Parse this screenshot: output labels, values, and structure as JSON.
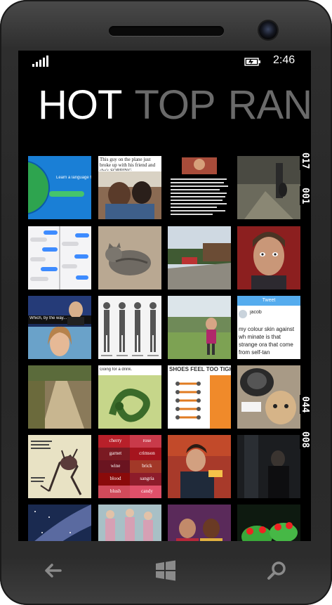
{
  "status_bar": {
    "time": "2:46",
    "signal_icon": "signal-bars-icon",
    "battery_icon": "battery-charging-icon"
  },
  "pivot": {
    "items": [
      {
        "label": "HOT",
        "active": true
      },
      {
        "label": "TOP",
        "active": false
      },
      {
        "label": "RAND",
        "active": false
      }
    ]
  },
  "side_labels": [
    "017",
    "001",
    "044",
    "008"
  ],
  "tiles": [
    {
      "name": "tile-language-app",
      "caption": "Learn a language fo"
    },
    {
      "name": "tile-plane-sobbing",
      "caption": "This guy on the plane just broke up with his friend and she's SOBBING"
    },
    {
      "name": "tile-text-post",
      "caption": ""
    },
    {
      "name": "tile-security-cam",
      "caption": ""
    },
    {
      "name": "tile-chat-screenshot",
      "caption": ""
    },
    {
      "name": "tile-cat",
      "caption": ""
    },
    {
      "name": "tile-driveway",
      "caption": ""
    },
    {
      "name": "tile-shocked-man",
      "caption": ""
    },
    {
      "name": "tile-news-anchor",
      "caption": ""
    },
    {
      "name": "tile-poses-chart",
      "caption": ""
    },
    {
      "name": "tile-backyard-girl",
      "caption": ""
    },
    {
      "name": "tile-tweet",
      "caption": "Tweet"
    },
    {
      "name": "tile-dirt-road",
      "caption": ""
    },
    {
      "name": "tile-snake",
      "caption": ""
    },
    {
      "name": "tile-shoelaces",
      "caption": "SHOES FEEL TOO TIGHT"
    },
    {
      "name": "tile-robot-vacuum-dog",
      "caption": ""
    },
    {
      "name": "tile-cartoon-monster",
      "caption": ""
    },
    {
      "name": "tile-color-names",
      "caption": ""
    },
    {
      "name": "tile-fan-man",
      "caption": ""
    },
    {
      "name": "tile-dark-room",
      "caption": ""
    },
    {
      "name": "tile-milky-way",
      "caption": ""
    },
    {
      "name": "tile-elderly-dancers",
      "caption": ""
    },
    {
      "name": "tile-tv-show",
      "caption": ""
    },
    {
      "name": "tile-tree-frogs",
      "caption": ""
    }
  ],
  "tweet_tile": {
    "header": "Tweet",
    "user": "jacob",
    "text": "my colour skin against wh minate is that strange ora that come from self-tan"
  },
  "color_words": [
    "cherry",
    "rose",
    "garnet",
    "crimson",
    "wine",
    "brick",
    "blood",
    "sangria",
    "blush",
    "candy"
  ],
  "nav": {
    "back_icon": "back-arrow-icon",
    "start_icon": "windows-logo-icon",
    "search_icon": "search-icon"
  }
}
